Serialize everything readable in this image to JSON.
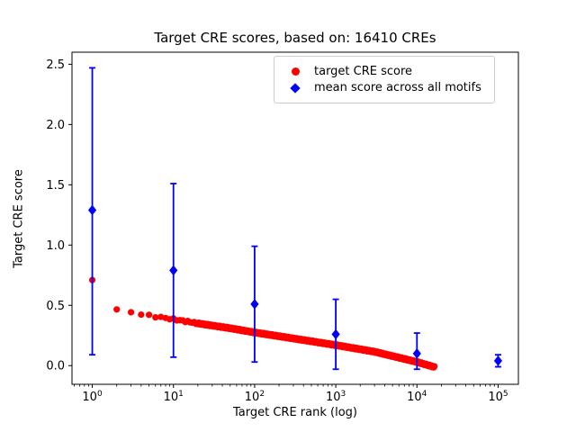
{
  "chart_data": {
    "type": "scatter",
    "title": "Target CRE scores, based on: 16410 CREs",
    "xlabel": "Target CRE rank (log)",
    "ylabel": "Target CRE score",
    "x_scale": "log",
    "xlim_log10": [
      -0.25,
      5.25
    ],
    "ylim": [
      -0.155,
      2.6
    ],
    "x_ticks": [
      1,
      10,
      100,
      1000,
      10000,
      100000
    ],
    "x_tick_exponents": [
      0,
      1,
      2,
      3,
      4,
      5
    ],
    "y_ticks": [
      0.0,
      0.5,
      1.0,
      1.5,
      2.0,
      2.5
    ],
    "grid": false,
    "legend_position": "upper right",
    "colors": {
      "target": "#ff0000",
      "mean": "#0000ff",
      "axis": "#000000"
    },
    "series": [
      {
        "name": "target CRE score",
        "type": "scatter",
        "marker": "circle",
        "color": "#ff0000",
        "first_point": [
          1,
          0.71
        ],
        "anchors": [
          [
            2,
            0.46
          ],
          [
            3,
            0.445
          ],
          [
            4,
            0.425
          ],
          [
            5,
            0.415
          ],
          [
            7,
            0.4
          ],
          [
            10,
            0.385
          ],
          [
            20,
            0.35
          ],
          [
            50,
            0.31
          ],
          [
            100,
            0.275
          ],
          [
            300,
            0.225
          ],
          [
            1000,
            0.17
          ],
          [
            3000,
            0.115
          ],
          [
            10000,
            0.03
          ],
          [
            16410,
            -0.012
          ]
        ],
        "dense_range": {
          "start": 2,
          "end": 16410,
          "integer_until": 20,
          "n_log_points": 380
        }
      },
      {
        "name": "mean score across all motifs",
        "type": "errorbar",
        "marker": "diamond",
        "color": "#0000ff",
        "x": [
          1,
          10,
          100,
          1000,
          10000,
          100000
        ],
        "y": [
          1.29,
          0.79,
          0.51,
          0.26,
          0.1,
          0.04
        ],
        "y_low": [
          0.09,
          0.07,
          0.03,
          -0.03,
          -0.03,
          -0.01
        ],
        "y_high": [
          2.47,
          1.51,
          0.99,
          0.55,
          0.27,
          0.09
        ]
      }
    ]
  }
}
